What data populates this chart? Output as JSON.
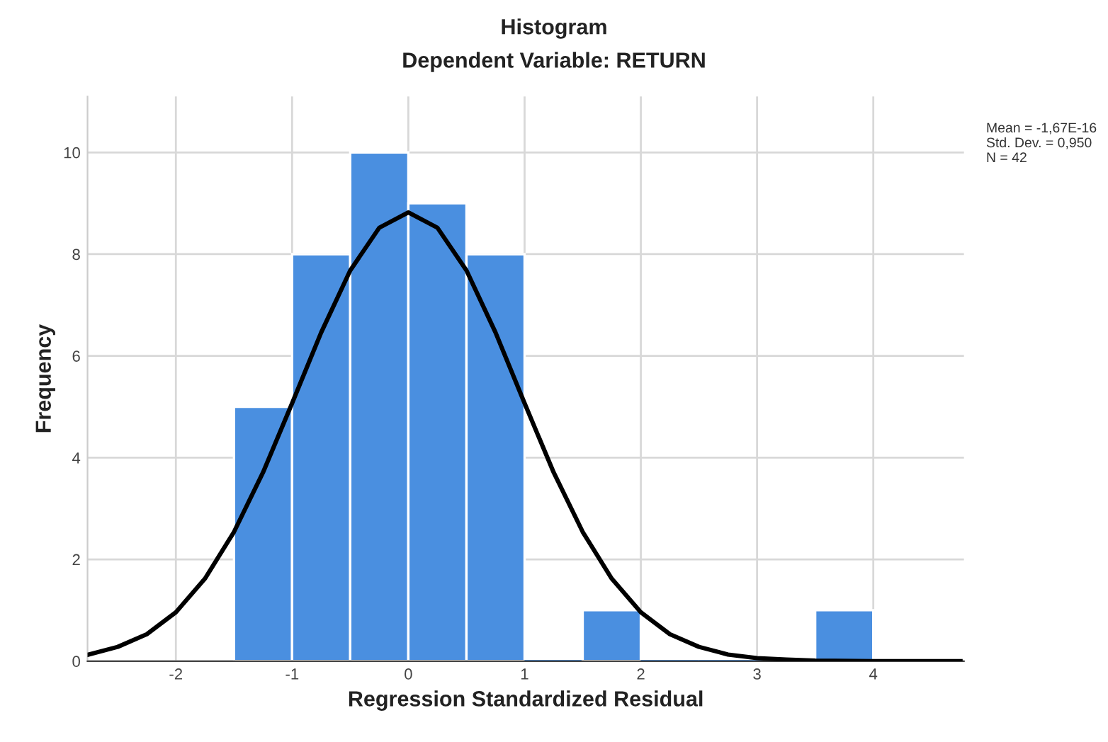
{
  "chart_data": {
    "type": "histogram",
    "title": "Histogram",
    "subtitle": "Dependent Variable: RETURN",
    "xlabel": "Regression Standardized Residual",
    "ylabel": "Frequency",
    "series": [
      {
        "color": "#4a8fe0",
        "bins": [
          -1.5,
          -1.0,
          -0.5,
          0.0,
          0.5,
          1.0,
          1.5,
          2.0,
          2.5,
          3.0,
          3.5,
          4.0
        ],
        "values": [
          5,
          8,
          10,
          9,
          8,
          0,
          1,
          0,
          0,
          0,
          1
        ]
      },
      {
        "type": "line",
        "color": "#000000",
        "x": [
          -2.75,
          -2.5,
          -2.25,
          -2.0,
          -1.75,
          -1.5,
          -1.25,
          -1.0,
          -0.75,
          -0.5,
          -0.25,
          0.0,
          0.25,
          0.5,
          0.75,
          1.0,
          1.25,
          1.5,
          1.75,
          2.0,
          2.25,
          2.5,
          2.75,
          3.0,
          3.25,
          3.5,
          4.0,
          4.5,
          4.75
        ],
        "values": [
          0.13,
          0.28,
          0.53,
          0.96,
          1.62,
          2.54,
          3.71,
          5.07,
          6.46,
          7.68,
          8.52,
          8.82,
          8.52,
          7.68,
          6.46,
          5.07,
          3.71,
          2.54,
          1.62,
          0.96,
          0.53,
          0.28,
          0.13,
          0.06,
          0.03,
          0.01,
          0.0,
          0.0,
          0.0
        ]
      }
    ],
    "xlim": [
      -2.76,
      4.78
    ],
    "ylim": [
      0,
      11.1
    ],
    "xticks": [
      -2,
      -1,
      0,
      1,
      2,
      3,
      4
    ],
    "yticks": [
      0,
      2,
      4,
      6,
      8,
      10
    ],
    "grid": true,
    "annotations": [
      "Mean = -1,67E-16",
      "Std. Dev. = 0,950",
      "N = 42"
    ]
  }
}
